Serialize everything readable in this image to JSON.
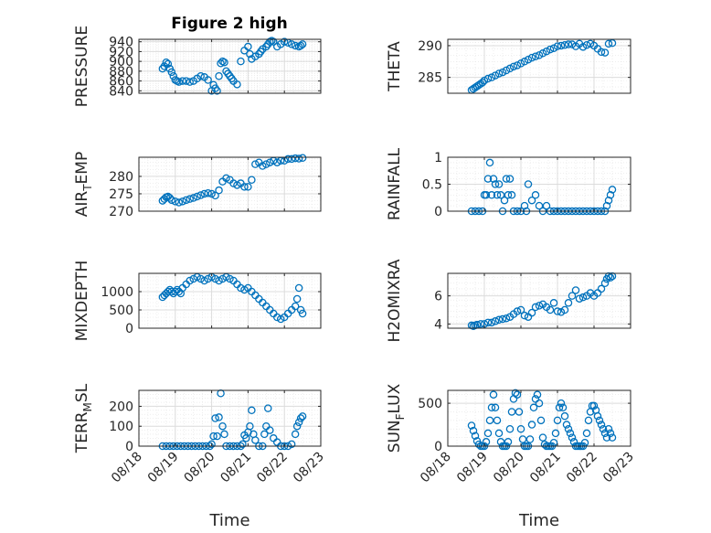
{
  "figure": {
    "title": "Figure 2 high"
  },
  "chart_data": [
    {
      "type": "scatter",
      "ylabel": "PRESSURE",
      "title": "Figure 2 high",
      "ylim": [
        835,
        945
      ],
      "yticks": [
        840,
        860,
        880,
        900,
        920,
        940
      ],
      "xlim": [
        "08/18",
        "08/23"
      ],
      "xticks": [],
      "xlabel": "",
      "grid": true,
      "marker": "o",
      "color": "#0072BD",
      "x": [
        18.65,
        18.7,
        18.75,
        18.8,
        18.85,
        18.9,
        18.95,
        19.0,
        19.05,
        19.1,
        19.2,
        19.3,
        19.4,
        19.5,
        19.6,
        19.7,
        19.8,
        19.9,
        20.0,
        20.05,
        20.1,
        20.15,
        20.2,
        20.25,
        20.3,
        20.35,
        20.4,
        20.45,
        20.5,
        20.55,
        20.6,
        20.7,
        20.8,
        20.9,
        21.0,
        21.05,
        21.1,
        21.2,
        21.3,
        21.35,
        21.4,
        21.5,
        21.55,
        21.6,
        21.65,
        21.7,
        21.8,
        21.9,
        22.0,
        22.1,
        22.2,
        22.3,
        22.4,
        22.45,
        22.5
      ],
      "y": [
        885,
        890,
        898,
        895,
        885,
        878,
        870,
        862,
        860,
        858,
        860,
        860,
        858,
        860,
        865,
        870,
        868,
        862,
        840,
        852,
        845,
        840,
        870,
        896,
        900,
        898,
        880,
        875,
        870,
        865,
        860,
        853,
        900,
        922,
        930,
        915,
        905,
        910,
        915,
        920,
        925,
        930,
        935,
        940,
        942,
        940,
        930,
        935,
        940,
        938,
        935,
        932,
        930,
        932,
        935
      ]
    },
    {
      "type": "scatter",
      "ylabel": "THETA",
      "ylim": [
        282.5,
        291
      ],
      "yticks": [
        285,
        290
      ],
      "xlim": [
        "08/18",
        "08/23"
      ],
      "xticks": [],
      "xlabel": "",
      "grid": true,
      "marker": "o",
      "color": "#0072BD",
      "x": [
        18.65,
        18.7,
        18.75,
        18.8,
        18.85,
        18.9,
        18.95,
        19.0,
        19.1,
        19.2,
        19.3,
        19.4,
        19.5,
        19.6,
        19.7,
        19.8,
        19.9,
        20.0,
        20.1,
        20.2,
        20.3,
        20.4,
        20.5,
        20.6,
        20.7,
        20.8,
        20.9,
        21.0,
        21.1,
        21.2,
        21.3,
        21.4,
        21.5,
        21.6,
        21.7,
        21.8,
        21.9,
        22.0,
        22.1,
        22.2,
        22.3,
        22.4,
        22.5
      ],
      "y": [
        283,
        283.2,
        283.4,
        283.6,
        283.8,
        284,
        284.2,
        284.5,
        284.8,
        285,
        285.3,
        285.6,
        285.8,
        286.1,
        286.4,
        286.7,
        286.9,
        287.2,
        287.5,
        287.8,
        288.1,
        288.3,
        288.5,
        288.8,
        289.1,
        289.4,
        289.6,
        289.9,
        290.0,
        290.1,
        290.2,
        290.2,
        289.9,
        290.3,
        289.8,
        290.1,
        290.3,
        290.0,
        289.5,
        289.0,
        288.9,
        290.3,
        290.4
      ]
    },
    {
      "type": "scatter",
      "ylabel": "AIR_TEMP",
      "ylim": [
        270,
        285.5
      ],
      "yticks": [
        270,
        275,
        280
      ],
      "xlim": [
        "08/18",
        "08/23"
      ],
      "xticks": [],
      "xlabel": "",
      "grid": true,
      "marker": "o",
      "color": "#0072BD",
      "x": [
        18.65,
        18.7,
        18.75,
        18.8,
        18.85,
        18.9,
        19.0,
        19.1,
        19.2,
        19.3,
        19.4,
        19.5,
        19.6,
        19.7,
        19.8,
        19.9,
        20.0,
        20.1,
        20.2,
        20.3,
        20.4,
        20.5,
        20.6,
        20.7,
        20.8,
        20.9,
        21.0,
        21.1,
        21.2,
        21.3,
        21.4,
        21.5,
        21.6,
        21.7,
        21.8,
        21.9,
        22.0,
        22.1,
        22.2,
        22.3,
        22.4,
        22.5
      ],
      "y": [
        273,
        273.5,
        274,
        274.2,
        273.8,
        273.2,
        272.8,
        272.5,
        272.8,
        273.2,
        273.5,
        273.8,
        274.2,
        274.6,
        275,
        275.2,
        275,
        274.5,
        276,
        278.5,
        279.5,
        279,
        278,
        277.5,
        278,
        277,
        277,
        279,
        283.5,
        284,
        283,
        283.5,
        284,
        284.5,
        284,
        284.5,
        284.5,
        285,
        285,
        285.2,
        285.1,
        285.3
      ]
    },
    {
      "type": "scatter",
      "ylabel": "RAINFALL",
      "ylim": [
        0,
        1
      ],
      "yticks": [
        0,
        0.5,
        1
      ],
      "xlim": [
        "08/18",
        "08/23"
      ],
      "xticks": [],
      "xlabel": "",
      "grid": true,
      "marker": "o",
      "color": "#0072BD",
      "x": [
        18.65,
        18.75,
        18.85,
        18.95,
        19.0,
        19.05,
        19.1,
        19.15,
        19.2,
        19.25,
        19.3,
        19.35,
        19.4,
        19.45,
        19.5,
        19.55,
        19.6,
        19.65,
        19.7,
        19.75,
        19.8,
        19.9,
        20.0,
        20.1,
        20.15,
        20.2,
        20.3,
        20.4,
        20.5,
        20.6,
        20.7,
        20.8,
        20.9,
        21.0,
        21.1,
        21.2,
        21.3,
        21.4,
        21.5,
        21.6,
        21.7,
        21.8,
        21.9,
        22.0,
        22.1,
        22.2,
        22.3,
        22.35,
        22.4,
        22.45,
        22.5
      ],
      "y": [
        0,
        0,
        0,
        0,
        0.3,
        0.3,
        0.6,
        0.9,
        0.3,
        0.6,
        0.5,
        0.3,
        0.5,
        0.3,
        0,
        0.2,
        0.6,
        0.3,
        0.6,
        0.3,
        0,
        0,
        0,
        0.1,
        0,
        0.5,
        0.2,
        0.3,
        0.1,
        0,
        0.1,
        0,
        0,
        0,
        0,
        0,
        0,
        0,
        0,
        0,
        0,
        0,
        0,
        0,
        0,
        0,
        0,
        0.1,
        0.2,
        0.3,
        0.4
      ]
    },
    {
      "type": "scatter",
      "ylabel": "MIXDEPTH",
      "ylim": [
        0,
        1500
      ],
      "yticks": [
        0,
        500,
        1000
      ],
      "xlim": [
        "08/18",
        "08/23"
      ],
      "xticks": [],
      "xlabel": "",
      "grid": true,
      "marker": "o",
      "color": "#0072BD",
      "x": [
        18.65,
        18.7,
        18.75,
        18.8,
        18.85,
        18.9,
        18.95,
        19.0,
        19.05,
        19.1,
        19.15,
        19.2,
        19.3,
        19.4,
        19.5,
        19.6,
        19.7,
        19.8,
        19.9,
        20.0,
        20.1,
        20.2,
        20.3,
        20.4,
        20.5,
        20.6,
        20.7,
        20.8,
        20.9,
        21.0,
        21.1,
        21.2,
        21.3,
        21.4,
        21.5,
        21.6,
        21.7,
        21.8,
        21.9,
        22.0,
        22.1,
        22.2,
        22.3,
        22.35,
        22.4,
        22.45,
        22.5
      ],
      "y": [
        850,
        900,
        950,
        1000,
        1050,
        1000,
        950,
        1000,
        1050,
        1000,
        950,
        1100,
        1200,
        1300,
        1350,
        1400,
        1350,
        1300,
        1350,
        1400,
        1350,
        1300,
        1350,
        1400,
        1350,
        1300,
        1200,
        1100,
        1050,
        1100,
        1000,
        900,
        800,
        700,
        600,
        500,
        400,
        300,
        250,
        300,
        400,
        500,
        600,
        800,
        1100,
        500,
        400
      ]
    },
    {
      "type": "scatter",
      "ylabel": "H2OMIXRA",
      "ylim": [
        3.7,
        7.6
      ],
      "yticks": [
        4,
        6
      ],
      "xlim": [
        "08/18",
        "08/23"
      ],
      "xticks": [],
      "xlabel": "",
      "grid": true,
      "marker": "o",
      "color": "#0072BD",
      "x": [
        18.65,
        18.7,
        18.75,
        18.8,
        18.9,
        19.0,
        19.1,
        19.2,
        19.3,
        19.4,
        19.5,
        19.6,
        19.7,
        19.8,
        19.9,
        20.0,
        20.1,
        20.2,
        20.3,
        20.4,
        20.5,
        20.6,
        20.7,
        20.8,
        20.9,
        21.0,
        21.1,
        21.2,
        21.3,
        21.4,
        21.5,
        21.6,
        21.7,
        21.8,
        21.9,
        22.0,
        22.1,
        22.2,
        22.3,
        22.35,
        22.4,
        22.45,
        22.5
      ],
      "y": [
        3.9,
        3.85,
        3.9,
        3.95,
        4.0,
        4.0,
        4.1,
        4.1,
        4.2,
        4.3,
        4.35,
        4.4,
        4.5,
        4.7,
        4.9,
        5.0,
        4.6,
        4.5,
        4.8,
        5.2,
        5.3,
        5.4,
        5.2,
        5.0,
        5.5,
        4.9,
        4.85,
        5.0,
        5.5,
        6.0,
        6.4,
        5.8,
        5.9,
        6.0,
        6.2,
        6.0,
        6.2,
        6.5,
        6.9,
        7.2,
        7.4,
        7.3,
        7.4
      ]
    },
    {
      "type": "scatter",
      "ylabel": "TERR_MSL",
      "ylim": [
        0,
        280
      ],
      "yticks": [
        0,
        100,
        200
      ],
      "xlim": [
        "08/18",
        "08/23"
      ],
      "xticks": [
        "08/18",
        "08/19",
        "08/20",
        "08/21",
        "08/22",
        "08/23"
      ],
      "xlabel": "Time",
      "grid": true,
      "marker": "o",
      "color": "#0072BD",
      "x": [
        18.65,
        18.75,
        18.85,
        18.95,
        19.05,
        19.15,
        19.25,
        19.35,
        19.45,
        19.55,
        19.65,
        19.75,
        19.85,
        19.95,
        20.0,
        20.05,
        20.1,
        20.15,
        20.2,
        20.25,
        20.3,
        20.35,
        20.4,
        20.5,
        20.6,
        20.7,
        20.8,
        20.85,
        20.9,
        20.95,
        21.0,
        21.05,
        21.1,
        21.15,
        21.2,
        21.3,
        21.4,
        21.45,
        21.5,
        21.55,
        21.6,
        21.7,
        21.8,
        21.9,
        22.0,
        22.1,
        22.2,
        22.3,
        22.35,
        22.4,
        22.45,
        22.5
      ],
      "y": [
        0,
        0,
        0,
        0,
        0,
        0,
        0,
        0,
        0,
        0,
        0,
        0,
        0,
        0,
        10,
        50,
        140,
        50,
        145,
        265,
        100,
        60,
        0,
        0,
        0,
        0,
        0,
        10,
        55,
        40,
        70,
        100,
        180,
        60,
        30,
        0,
        0,
        60,
        100,
        190,
        80,
        40,
        20,
        0,
        0,
        0,
        10,
        60,
        100,
        120,
        140,
        150
      ]
    },
    {
      "type": "scatter",
      "ylabel": "SUN_FLUX",
      "ylim": [
        0,
        650
      ],
      "yticks": [
        0,
        500
      ],
      "xlim": [
        "08/18",
        "08/23"
      ],
      "xticks": [
        "08/18",
        "08/19",
        "08/20",
        "08/21",
        "08/22",
        "08/23"
      ],
      "xlabel": "Time",
      "grid": true,
      "marker": "o",
      "color": "#0072BD",
      "x": [
        18.65,
        18.7,
        18.75,
        18.8,
        18.85,
        18.9,
        18.95,
        19.0,
        19.05,
        19.1,
        19.15,
        19.2,
        19.25,
        19.3,
        19.35,
        19.4,
        19.45,
        19.5,
        19.55,
        19.6,
        19.65,
        19.7,
        19.75,
        19.8,
        19.85,
        19.9,
        19.95,
        20.0,
        20.05,
        20.1,
        20.15,
        20.2,
        20.25,
        20.3,
        20.35,
        20.4,
        20.45,
        20.5,
        20.55,
        20.6,
        20.65,
        20.7,
        20.75,
        20.8,
        20.85,
        20.9,
        20.95,
        21.0,
        21.05,
        21.1,
        21.15,
        21.2,
        21.25,
        21.3,
        21.35,
        21.4,
        21.45,
        21.5,
        21.55,
        21.6,
        21.65,
        21.7,
        21.75,
        21.8,
        21.85,
        21.9,
        21.95,
        22.0,
        22.05,
        22.1,
        22.15,
        22.2,
        22.25,
        22.3,
        22.35,
        22.4,
        22.45,
        22.5
      ],
      "y": [
        240,
        180,
        120,
        60,
        20,
        0,
        0,
        0,
        50,
        150,
        300,
        450,
        600,
        450,
        300,
        150,
        50,
        0,
        0,
        0,
        50,
        200,
        400,
        550,
        620,
        600,
        400,
        200,
        80,
        0,
        0,
        0,
        80,
        250,
        450,
        550,
        600,
        500,
        300,
        100,
        20,
        0,
        0,
        0,
        0,
        40,
        150,
        300,
        450,
        500,
        450,
        350,
        250,
        200,
        150,
        100,
        50,
        0,
        0,
        0,
        0,
        0,
        40,
        150,
        300,
        400,
        470,
        470,
        420,
        350,
        300,
        250,
        200,
        150,
        100,
        200,
        150,
        100
      ]
    }
  ]
}
